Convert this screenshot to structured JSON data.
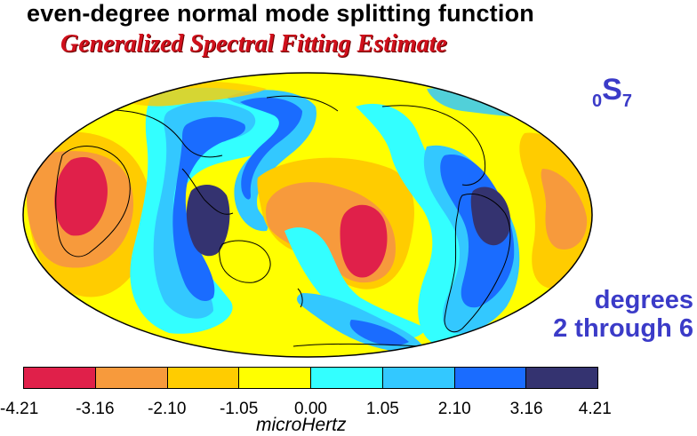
{
  "title": "even-degree normal mode splitting function",
  "subtitle": "Generalized Spectral Fitting Estimate",
  "mode_label": {
    "prefix_sub": "0",
    "letter": "S",
    "suffix_sub": "7"
  },
  "degree_note": {
    "line1": "degrees",
    "line2": "2 through 6"
  },
  "colorbar": {
    "colors": [
      "#e0204a",
      "#f79a3c",
      "#ffcc00",
      "#ffff00",
      "#33ffff",
      "#33c8ff",
      "#1a6cff",
      "#343370"
    ],
    "ticks": [
      "-4.21",
      "-3.16",
      "-2.10",
      "-1.05",
      "0.00",
      "1.05",
      "2.10",
      "3.16",
      "4.21"
    ],
    "unit": "microHertz"
  },
  "map_colors": {
    "background": "#ffff00",
    "outline": "#000000"
  }
}
